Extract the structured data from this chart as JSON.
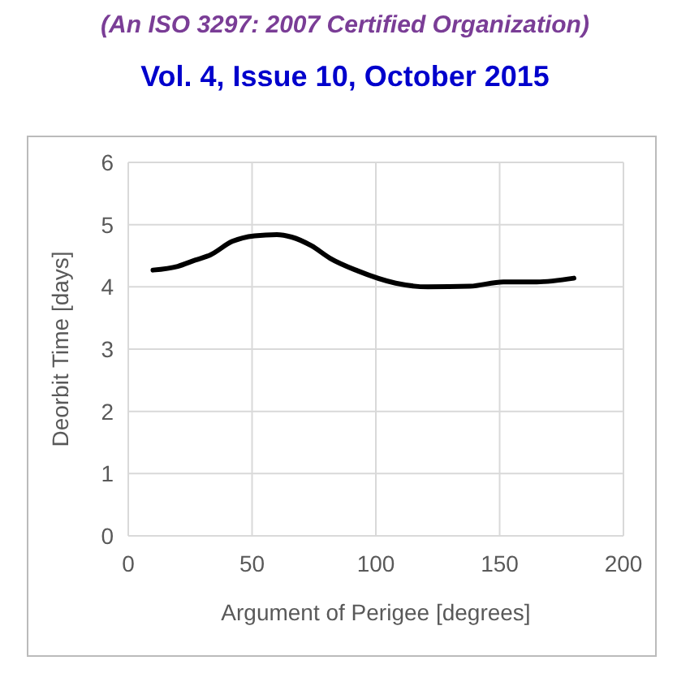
{
  "chart_data": {
    "type": "line",
    "title": "(An ISO 3297: 2007 Certified Organization)",
    "subtitle": "Vol. 4, Issue 10, October 2015",
    "xlabel": "Argument of Perigee [degrees]",
    "ylabel": "Deorbit Time [days]",
    "x": [
      10,
      20,
      27,
      33,
      42,
      51,
      60,
      66,
      74,
      81.5,
      92.5,
      108,
      121,
      138,
      151.5,
      165,
      180
    ],
    "series": [
      {
        "color": "#000000",
        "values": [
          4.27,
          4.33,
          4.43,
          4.51,
          4.73,
          4.82,
          4.84,
          4.8,
          4.66,
          4.46,
          4.26,
          4.06,
          4.0,
          4.01,
          4.08,
          4.08,
          4.14
        ]
      }
    ],
    "xlim": [
      0,
      200
    ],
    "xticks": [
      0,
      50,
      100,
      150,
      200
    ],
    "ylim": [
      0,
      6
    ],
    "yticks": [
      0,
      1,
      2,
      3,
      4,
      5,
      6
    ],
    "grid": true,
    "marker": "none",
    "line_style": "solid"
  }
}
